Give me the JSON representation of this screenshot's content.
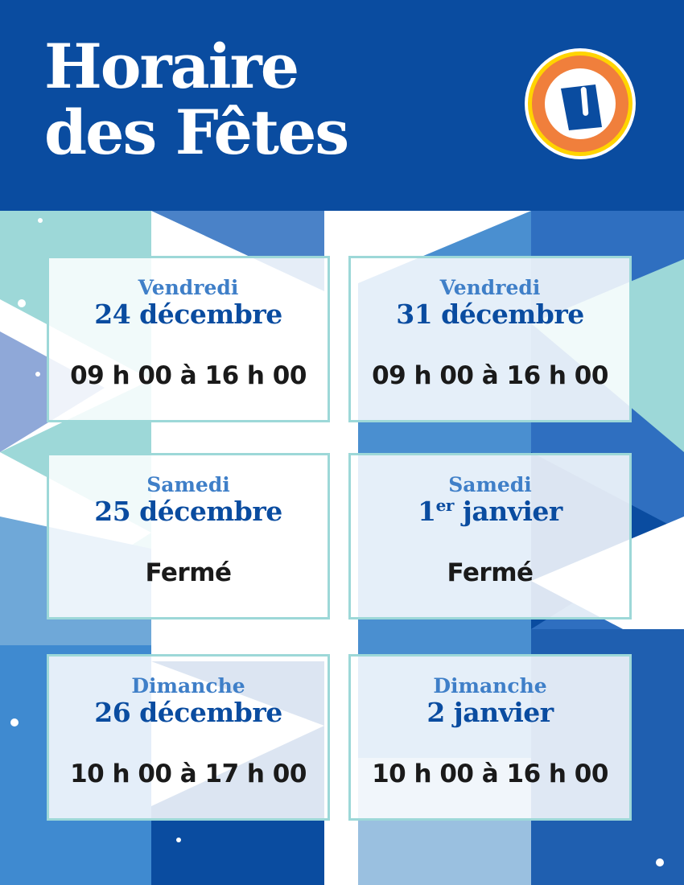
{
  "header": {
    "title_line1": "Horaire",
    "title_line2": "des Fêtes",
    "logo_letter": "U"
  },
  "colors": {
    "brand_blue": "#0a4ca0",
    "day_blue": "#3f7fc8",
    "border_teal": "#9dd8d8",
    "logo_orange": "#f07f3c",
    "logo_yellow": "#ffd400"
  },
  "schedule": [
    {
      "day": "Vendredi",
      "date": "24 décembre",
      "hours": "09 h 00 à 16 h 00"
    },
    {
      "day": "Vendredi",
      "date": "31 décembre",
      "hours": "09 h 00 à 16 h 00"
    },
    {
      "day": "Samedi",
      "date": "25 décembre",
      "hours": "Fermé"
    },
    {
      "day": "Samedi",
      "date_num": "1",
      "date_sup": "er",
      "date_rest": " janvier",
      "hours": "Fermé"
    },
    {
      "day": "Dimanche",
      "date": "26 décembre",
      "hours": "10 h 00 à 17 h 00"
    },
    {
      "day": "Dimanche",
      "date": "2 janvier",
      "hours": "10 h 00 à 16 h 00"
    }
  ]
}
